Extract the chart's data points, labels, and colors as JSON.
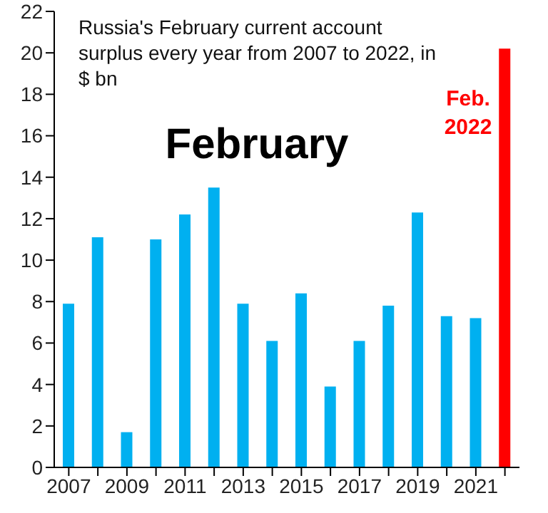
{
  "chart_data": {
    "type": "bar",
    "title": "Russia's February current account surplus every year from 2007  to 2022,  in $ bn",
    "categories": [
      "2007",
      null,
      "2009",
      null,
      "2011",
      null,
      "2013",
      null,
      "2015",
      null,
      "2017",
      null,
      "2019",
      null,
      "2021",
      null
    ],
    "values": [
      7.9,
      11.1,
      1.7,
      11.0,
      12.2,
      13.5,
      7.9,
      6.1,
      8.4,
      3.9,
      6.1,
      7.8,
      12.3,
      7.3,
      7.2,
      20.2
    ],
    "colors": [
      "#00b0f0",
      "#00b0f0",
      "#00b0f0",
      "#00b0f0",
      "#00b0f0",
      "#00b0f0",
      "#00b0f0",
      "#00b0f0",
      "#00b0f0",
      "#00b0f0",
      "#00b0f0",
      "#00b0f0",
      "#00b0f0",
      "#00b0f0",
      "#00b0f0",
      "#ff0000"
    ],
    "ylim": [
      0,
      22
    ],
    "yticks": [
      0,
      2,
      4,
      6,
      8,
      10,
      12,
      14,
      16,
      18,
      20,
      22
    ],
    "annotations": [
      "February",
      "Feb. 2022"
    ],
    "grid": false,
    "legend": false
  }
}
